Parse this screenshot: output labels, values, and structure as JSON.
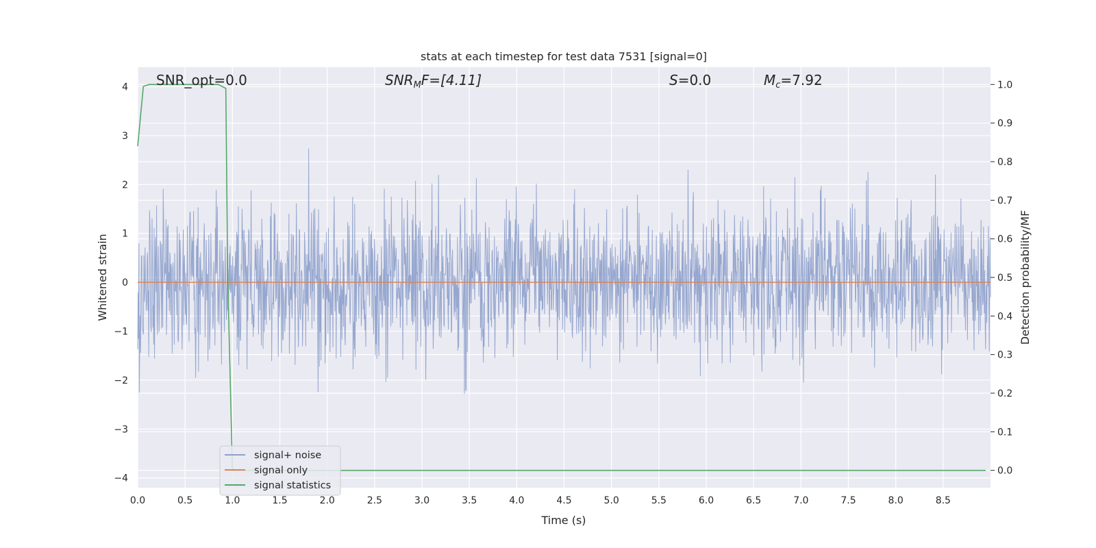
{
  "chart_data": {
    "type": "line",
    "title": "stats at each timestep for test data 7531 [signal=0]",
    "xlabel": "Time (s)",
    "ylabel": "Whitened strain",
    "ylabel_right": "Detection probability/MF",
    "xlim": [
      0.0,
      9.0
    ],
    "ylim": [
      -4.2,
      4.4
    ],
    "ylim_right": [
      -0.045,
      1.045
    ],
    "x_ticks": [
      0.0,
      0.5,
      1.0,
      1.5,
      2.0,
      2.5,
      3.0,
      3.5,
      4.0,
      4.5,
      5.0,
      5.5,
      6.0,
      6.5,
      7.0,
      7.5,
      8.0,
      8.5
    ],
    "x_tick_labels": [
      "0.0",
      "0.5",
      "1.0",
      "1.5",
      "2.0",
      "2.5",
      "3.0",
      "3.5",
      "4.0",
      "4.5",
      "5.0",
      "5.5",
      "6.0",
      "6.5",
      "7.0",
      "7.5",
      "8.0",
      "8.5"
    ],
    "y_ticks": [
      4,
      3,
      2,
      1,
      0,
      -1,
      -2,
      -3,
      -4
    ],
    "y_tick_labels": [
      "4",
      "3",
      "2",
      "1",
      "0",
      "−1",
      "−2",
      "−3",
      "−4"
    ],
    "y_ticks_right": [
      1.0,
      0.9,
      0.8,
      0.7,
      0.6,
      0.5,
      0.4,
      0.3,
      0.2,
      0.1,
      0.0
    ],
    "y_tick_labels_right": [
      "1.0",
      "0.9",
      "0.8",
      "0.7",
      "0.6",
      "0.5",
      "0.4",
      "0.3",
      "0.2",
      "0.1",
      "0.0"
    ],
    "grid": true,
    "legend_position": "lower-left",
    "annotations": {
      "snr_opt": "SNR_opt=0.0",
      "snr_mf_sym": "SNR",
      "snr_mf_sub": "M",
      "snr_mf_rest": "F=[4.11]",
      "s_sym": "S",
      "s_rest": "=0.0",
      "mc_sym": "M",
      "mc_sub": "c",
      "mc_rest": "=7.92"
    },
    "series": [
      {
        "name": "signal+ noise",
        "color": "#8da0cb",
        "axis": "left",
        "description_points": "dense noise, std approx 0.75, t from 0 to 9 s",
        "noise_std": 0.75
      },
      {
        "name": "signal only",
        "color": "#dd8452",
        "axis": "left",
        "x": [
          0.0,
          9.0
        ],
        "y": [
          0.0,
          0.0
        ]
      },
      {
        "name": "signal statistics",
        "color": "#55a868",
        "axis": "right",
        "x": [
          0.0,
          0.06,
          0.12,
          0.2,
          0.5,
          0.85,
          0.93,
          0.95,
          1.0,
          1.2,
          2.0,
          4.0,
          6.0,
          8.0,
          8.95
        ],
        "y": [
          0.84,
          0.995,
          1.0,
          1.0,
          1.0,
          1.0,
          0.99,
          0.5,
          0.0,
          0.0,
          0.0,
          0.0,
          0.0,
          0.0,
          0.0
        ]
      }
    ]
  }
}
